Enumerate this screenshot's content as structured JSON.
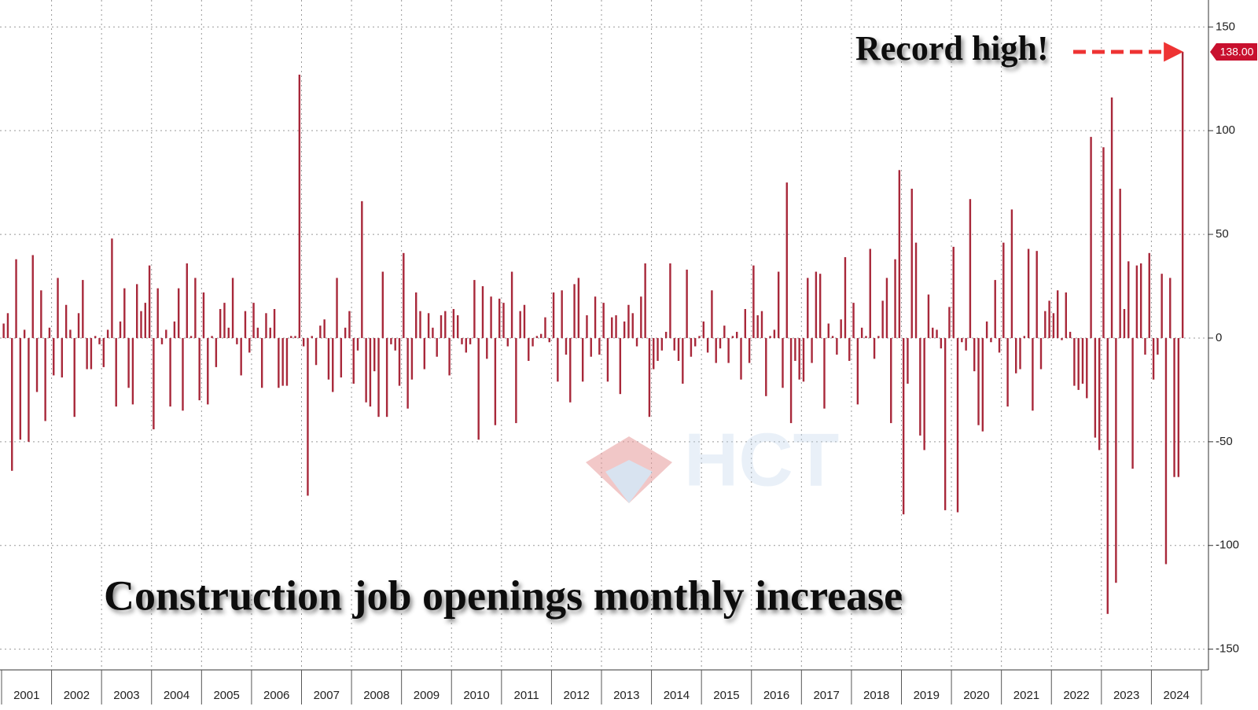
{
  "chart_data": {
    "type": "bar",
    "title": "Construction job openings monthly increase",
    "annotation": "Record high!",
    "latest_label": "138.00",
    "watermark": "HCT",
    "color": "#a8283a",
    "categories": [
      "2001",
      "2002",
      "2003",
      "2004",
      "2005",
      "2006",
      "2007",
      "2008",
      "2009",
      "2010",
      "2011",
      "2012",
      "2013",
      "2014",
      "2015",
      "2016",
      "2017",
      "2018",
      "2019",
      "2020",
      "2021",
      "2022",
      "2023",
      "2024"
    ],
    "values": [
      [
        7,
        12,
        -64,
        38,
        -49,
        4,
        -50,
        40,
        -26,
        23,
        -40,
        5
      ],
      [
        -18,
        29,
        -19,
        16,
        4,
        -38,
        12,
        28,
        -15,
        -15,
        1,
        -3
      ],
      [
        -14,
        4,
        48,
        -33,
        8,
        24,
        -24,
        -32,
        26,
        13,
        17,
        35
      ],
      [
        -44,
        24,
        -3,
        4,
        -33,
        8,
        24,
        -35,
        36,
        1,
        29,
        -30
      ],
      [
        22,
        -32,
        1,
        -14,
        14,
        17,
        5,
        29,
        -3,
        -18,
        13,
        -7
      ],
      [
        17,
        5,
        -24,
        12,
        5,
        14,
        -24,
        -23,
        -23,
        1,
        1,
        127
      ],
      [
        -4,
        -76,
        1,
        -13,
        6,
        9,
        -20,
        -26,
        29,
        -19,
        5,
        13
      ],
      [
        -22,
        -6,
        66,
        -31,
        -33,
        -16,
        -38,
        32,
        -38,
        -3,
        -6,
        -23
      ],
      [
        41,
        -34,
        -20,
        22,
        13,
        -15,
        12,
        5,
        -9,
        11,
        13,
        -18
      ],
      [
        14,
        11,
        -3,
        -7,
        -3,
        28,
        -49,
        25,
        -10,
        20,
        -42,
        19
      ],
      [
        17,
        -4,
        32,
        -41,
        13,
        16,
        -11,
        -4,
        1,
        2,
        10,
        -2
      ],
      [
        22,
        -21,
        23,
        -8,
        -31,
        26,
        29,
        -21,
        11,
        -9,
        20,
        -8
      ],
      [
        17,
        -21,
        10,
        11,
        -27,
        8,
        16,
        12,
        -4,
        20,
        36,
        -38
      ],
      [
        -15,
        -11,
        -6,
        3,
        36,
        -6,
        -11,
        -22,
        33,
        -9,
        -4,
        1
      ],
      [
        8,
        -7,
        23,
        -12,
        -5,
        6,
        -12,
        1,
        3,
        -20,
        14,
        -12
      ],
      [
        35,
        11,
        13,
        -28,
        1,
        4,
        32,
        -24,
        75,
        -41,
        -11,
        -20
      ],
      [
        -21,
        29,
        -12,
        32,
        31,
        -34,
        7,
        1,
        -8,
        9,
        39,
        -11
      ],
      [
        17,
        -32,
        5,
        1,
        43,
        -10,
        1,
        18,
        29,
        -41,
        38,
        81
      ],
      [
        -85,
        -22,
        72,
        46,
        -47,
        -54,
        21,
        5,
        4,
        -5,
        -83,
        15
      ],
      [
        44,
        -84,
        -2,
        -6,
        67,
        -16,
        -42,
        -45,
        8,
        -2,
        28,
        -7
      ],
      [
        46,
        -33,
        62,
        -17,
        -15,
        1,
        43,
        -35,
        42,
        -15,
        13,
        18
      ],
      [
        12,
        23,
        -1,
        22,
        3,
        -23,
        -25,
        -22,
        -29,
        97,
        -48,
        -54
      ],
      [
        92,
        -133,
        116,
        -118,
        72,
        14,
        37,
        -63,
        35,
        36,
        -8,
        41
      ],
      [
        -20,
        -8,
        31,
        -109,
        29,
        -67,
        -67,
        138
      ]
    ],
    "ylim": [
      -160,
      163
    ],
    "yticks": [
      -150,
      -100,
      -50,
      0,
      50,
      100,
      150
    ],
    "grid": true
  }
}
